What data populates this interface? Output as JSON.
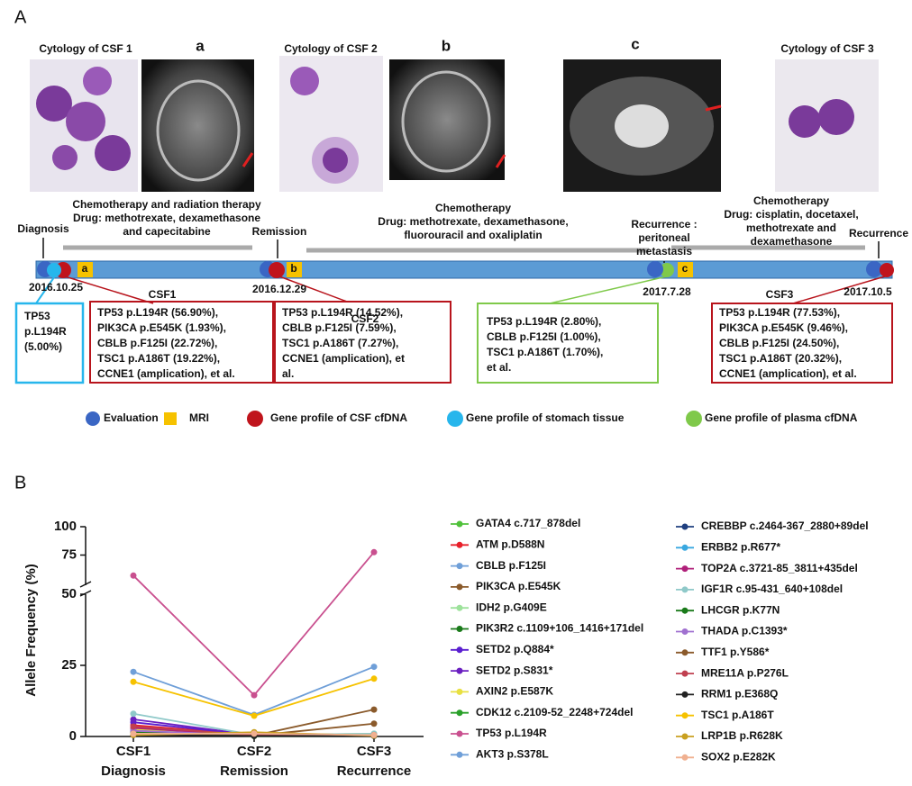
{
  "panel_a": {
    "label": "A",
    "captions": [
      "Cytology of CSF 1",
      "a",
      "Cytology of CSF 2",
      "b",
      "c",
      "Cytology of CSF 3"
    ],
    "events": [
      [
        "Diagnosis"
      ],
      [
        "Remission"
      ],
      [
        "Recurrence :",
        "peritoneal",
        "metastasis"
      ],
      [
        "Recurrence"
      ]
    ],
    "dates": [
      "2016.10.25",
      "2016.12.29",
      "2017.7.28",
      "2017.10.5"
    ],
    "treatments": [
      [
        "Chemotherapy and radiation therapy",
        "Drug: methotrexate, dexamethasone",
        "and capecitabine"
      ],
      [
        "Chemotherapy",
        "Drug: methotrexate, dexamethasone,",
        "fluorouracil and oxaliplatin"
      ],
      [
        "Chemotherapy",
        "Drug: cisplatin, docetaxel,",
        "methotrexate and",
        "dexamethasone"
      ]
    ],
    "mri_letters": [
      "a",
      "b",
      "c"
    ],
    "sample_labels": [
      "CSF1",
      "CSF2",
      "CSF3"
    ],
    "boxes": [
      [
        "TP53",
        "p.L194R",
        "(5.00%)"
      ],
      [
        "TP53 p.L194R (56.90%),",
        "PIK3CA p.E545K (1.93%),",
        "CBLB p.F125I (22.72%),",
        "TSC1 p.A186T (19.22%),",
        "CCNE1 (amplication), et al."
      ],
      [
        "TP53 p.L194R (14.52%),",
        "CBLB p.F125I (7.59%),",
        "TSC1 p.A186T (7.27%),",
        "CCNE1 (amplication), et",
        "al."
      ],
      [
        "TP53 p.L194R (2.80%),",
        "CBLB p.F125I (1.00%),",
        "TSC1 p.A186T (1.70%),",
        "et al."
      ],
      [
        "TP53 p.L194R (77.53%),",
        "PIK3CA p.E545K (9.46%),",
        "CBLB p.F125I (24.50%),",
        "TSC1 p.A186T (20.32%),",
        "CCNE1 (amplication), et al."
      ]
    ],
    "legend": [
      "Evaluation",
      "MRI",
      "Gene profile of CSF cfDNA",
      "Gene profile of stomach tissue",
      "Gene profile of plasma cfDNA"
    ]
  },
  "chart_data": {
    "type": "line",
    "label": "B",
    "y_label": "Allele Frequency (%)",
    "categories": [
      "CSF1",
      "CSF2",
      "CSF3"
    ],
    "category_sublabels": [
      "Diagnosis",
      "Remission",
      "Recurrence"
    ],
    "ylim": [
      0,
      100
    ],
    "yticks": [
      0,
      25,
      50,
      75,
      100
    ],
    "ybreak": 50,
    "series": [
      {
        "name": "GATA4 c.717_878del",
        "color": "#4fc13a",
        "values": [
          1.5,
          0.3,
          0.5
        ]
      },
      {
        "name": "ATM p.D588N",
        "color": "#e8202a",
        "values": [
          4,
          0.5,
          0.8
        ]
      },
      {
        "name": "CBLB p.F125I",
        "color": "#6f9fd8",
        "values": [
          22.72,
          7.59,
          24.5
        ]
      },
      {
        "name": "PIK3CA p.E545K",
        "color": "#8a5a2b",
        "values": [
          1.93,
          0.3,
          9.46
        ]
      },
      {
        "name": "IDH2 p.G409E",
        "color": "#9de29b",
        "values": [
          3,
          0.5,
          1
        ]
      },
      {
        "name": "PIK3R2 c.1109+106_1416+171del",
        "color": "#1a7a1a",
        "values": [
          2,
          0.3,
          0.6
        ]
      },
      {
        "name": "SETD2 p.Q884*",
        "color": "#5a1fd0",
        "values": [
          5,
          0.5,
          0.5
        ]
      },
      {
        "name": "SETD2 p.S831*",
        "color": "#6a1fc0",
        "values": [
          6,
          0.5,
          0.5
        ]
      },
      {
        "name": "AXIN2 p.E587K",
        "color": "#e8e040",
        "values": [
          2.5,
          0.5,
          0.5
        ]
      },
      {
        "name": "CDK12 c.2109-52_2248+724del",
        "color": "#2aa02a",
        "values": [
          1,
          0.2,
          0.3
        ]
      },
      {
        "name": "TP53 p.L194R",
        "color": "#c9508f",
        "values": [
          56.9,
          14.52,
          77.53
        ]
      },
      {
        "name": "AKT3 p.S378L",
        "color": "#6f9fd8",
        "values": [
          3,
          0.5,
          0.5
        ]
      },
      {
        "name": "CREBBP c.2464-367_2880+89del",
        "color": "#1f3f7f",
        "values": [
          1,
          0.3,
          0.5
        ]
      },
      {
        "name": "ERBB2 p.R677*",
        "color": "#39a8e0",
        "values": [
          2,
          0.3,
          0.3
        ]
      },
      {
        "name": "TOP2A c.3721-85_3811+435del",
        "color": "#b0207a",
        "values": [
          3,
          0.3,
          0.5
        ]
      },
      {
        "name": "IGF1R c.95-431_640+108del",
        "color": "#8fc9c9",
        "values": [
          8,
          0.5,
          1
        ]
      },
      {
        "name": "LHCGR p.K77N",
        "color": "#1a7a1a",
        "values": [
          1.5,
          0.2,
          0.5
        ]
      },
      {
        "name": "THADA p.C1393*",
        "color": "#a070d0",
        "values": [
          2,
          0.5,
          0.5
        ]
      },
      {
        "name": "TTF1 p.Y586*",
        "color": "#8b5a2b",
        "values": [
          1,
          0.3,
          4.5
        ]
      },
      {
        "name": "MRE11A p.P276L",
        "color": "#c04050",
        "values": [
          3.5,
          0.5,
          0.5
        ]
      },
      {
        "name": "RRM1 p.E368Q",
        "color": "#222222",
        "values": [
          0.5,
          0.2,
          0.2
        ]
      },
      {
        "name": "TSC1 p.A186T",
        "color": "#f6c200",
        "values": [
          19.22,
          7.27,
          20.32
        ]
      },
      {
        "name": "LRP1B p.R628K",
        "color": "#c9a020",
        "values": [
          0.5,
          1.5,
          0.3
        ]
      },
      {
        "name": "SOX2 p.E282K",
        "color": "#f0b090",
        "values": [
          1,
          1,
          0.5
        ]
      }
    ]
  }
}
